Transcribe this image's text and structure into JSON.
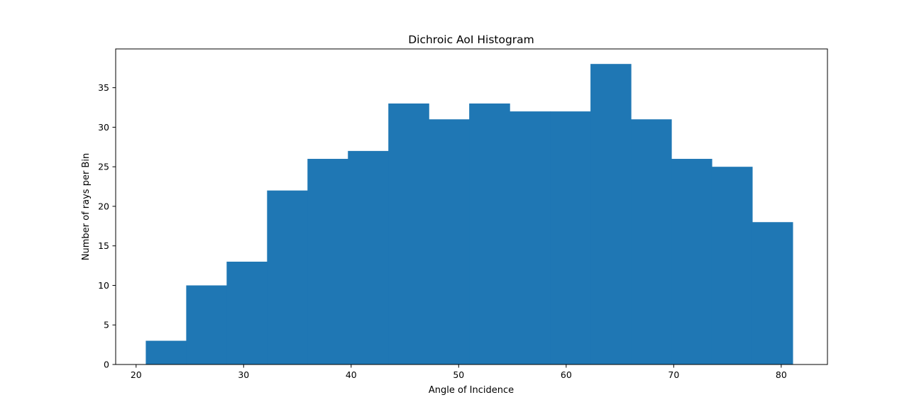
{
  "chart_data": {
    "type": "bar",
    "subtype": "histogram",
    "title": "Dichroic AoI Histogram",
    "xlabel": "Angle of Incidence",
    "ylabel": "Number of rays per Bin",
    "bin_edges": [
      20.9,
      24.66,
      28.42,
      32.18,
      35.94,
      39.7,
      43.46,
      47.22,
      50.98,
      54.74,
      58.5,
      62.26,
      66.02,
      69.78,
      73.54,
      77.3,
      81.06
    ],
    "values": [
      3,
      10,
      13,
      22,
      26,
      27,
      33,
      31,
      33,
      32,
      32,
      38,
      31,
      26,
      25,
      18
    ],
    "xlim": [
      18.1,
      84.3
    ],
    "ylim": [
      0,
      39.9
    ],
    "x_ticks": [
      20,
      30,
      40,
      50,
      60,
      70,
      80
    ],
    "y_ticks": [
      0,
      5,
      10,
      15,
      20,
      25,
      30,
      35
    ],
    "x_tick_labels": [
      "20",
      "30",
      "40",
      "50",
      "60",
      "70",
      "80"
    ],
    "y_tick_labels": [
      "0",
      "5",
      "10",
      "15",
      "20",
      "25",
      "30",
      "35"
    ],
    "bar_color": "#1f77b4",
    "grid": false,
    "legend": "none"
  }
}
